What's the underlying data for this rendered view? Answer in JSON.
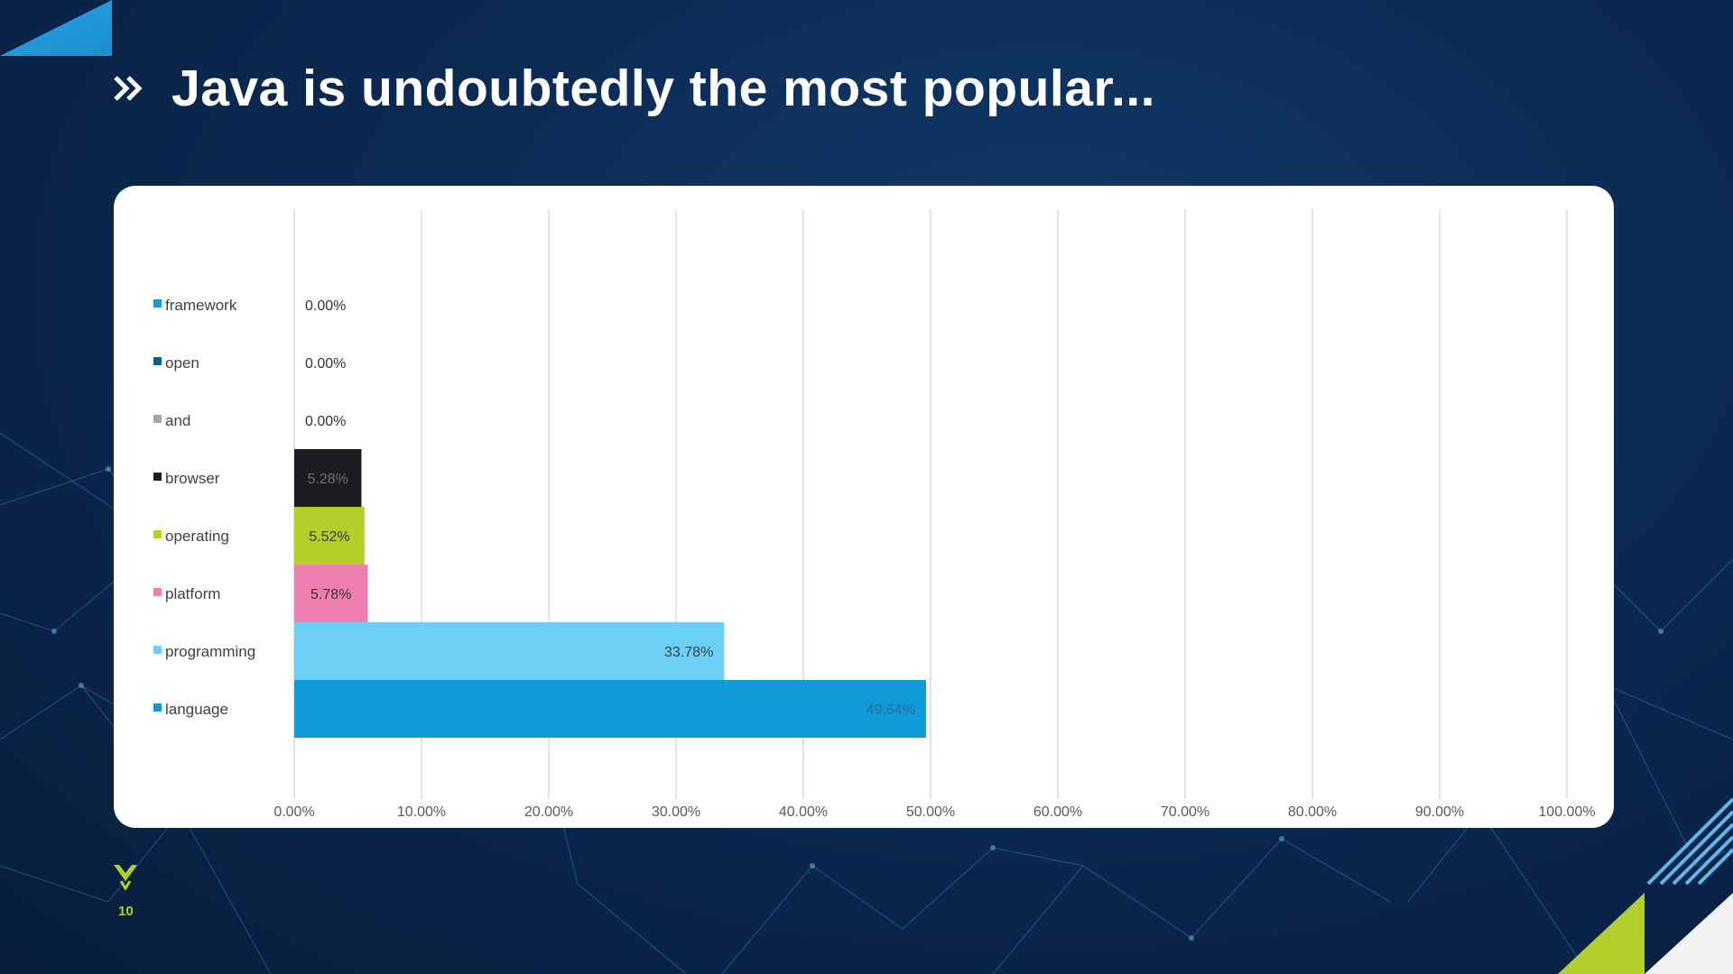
{
  "slide": {
    "title": "Java is undoubtedly the most popular...",
    "page_number": "10"
  },
  "colors": {
    "background": "#0b2a52",
    "accent_blue": "#1a9ad6",
    "accent_green": "#b5cf2a"
  },
  "icons": [
    "double-chevron-icon",
    "brand-logo-icon"
  ],
  "chart_data": {
    "type": "bar",
    "orientation": "horizontal",
    "categories": [
      "framework",
      "open",
      "and",
      "browser",
      "operating",
      "platform",
      "programming",
      "language"
    ],
    "values": [
      0.0,
      0.0,
      0.0,
      5.28,
      5.52,
      5.78,
      33.78,
      49.64
    ],
    "value_labels": [
      "0.00%",
      "0.00%",
      "0.00%",
      "5.28%",
      "5.52%",
      "5.78%",
      "33.78%",
      "49.64%"
    ],
    "bar_colors": [
      "#1897d2",
      "#0f5f86",
      "#a6a6a6",
      "#1c1c22",
      "#b5cf2a",
      "#ef7fb0",
      "#6ccff6",
      "#0f9bd7"
    ],
    "label_colors": [
      "#333333",
      "#333333",
      "#333333",
      "#6f6f75",
      "#333333",
      "#333333",
      "#404040",
      "#2e6d8f"
    ],
    "xlim": [
      0,
      100
    ],
    "xticks": [
      "0.00%",
      "10.00%",
      "20.00%",
      "30.00%",
      "40.00%",
      "50.00%",
      "60.00%",
      "70.00%",
      "80.00%",
      "90.00%",
      "100.00%"
    ],
    "grid": true,
    "legend": "left"
  }
}
